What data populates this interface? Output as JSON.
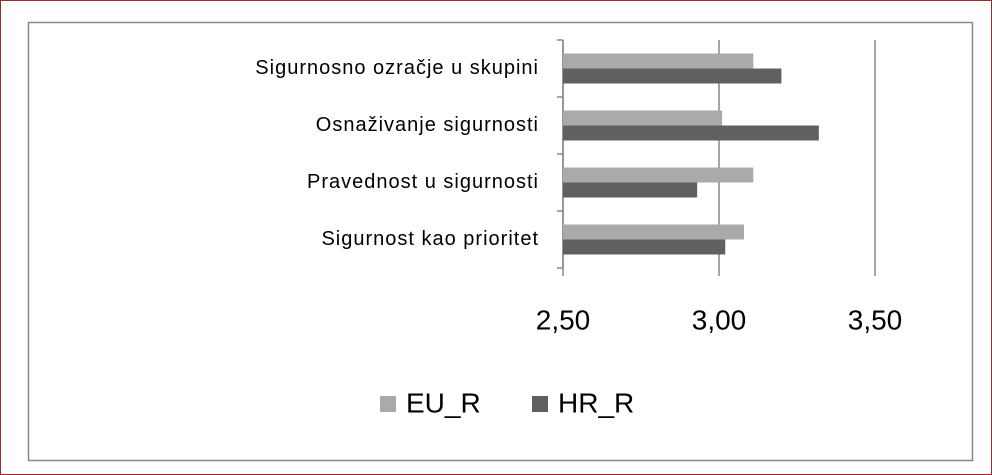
{
  "chart_data": {
    "type": "hbar",
    "categories": [
      "Sigurnosno ozračje u skupini",
      "Osnaživanje sigurnosti",
      "Pravednost u sigurnosti",
      "Sigurnost kao prioritet"
    ],
    "series": [
      {
        "name": "EU_R",
        "color": "#aaaaaa",
        "values": [
          3.11,
          3.01,
          3.11,
          3.08
        ]
      },
      {
        "name": "HR_R",
        "color": "#606060",
        "values": [
          3.2,
          3.32,
          2.93,
          3.02
        ]
      }
    ],
    "xlim": [
      2.5,
      3.5
    ],
    "xticks": [
      {
        "value": 2.5,
        "label": "2,50"
      },
      {
        "value": 3.0,
        "label": "3,00"
      },
      {
        "value": 3.5,
        "label": "3,50"
      }
    ],
    "grid": true,
    "legend": "bottom"
  }
}
